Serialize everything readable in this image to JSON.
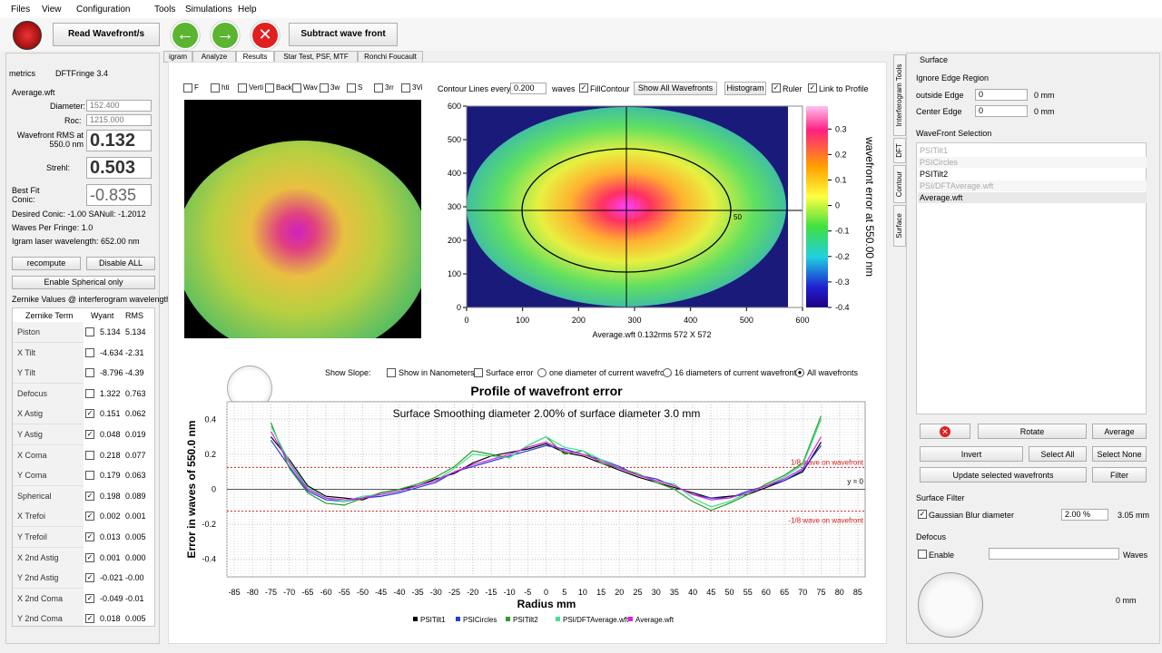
{
  "menu": [
    "Files",
    "View",
    "Configuration",
    "Tools",
    "Simulations",
    "Help"
  ],
  "toolbar": {
    "read": "Read Wavefront/s",
    "subtract": "Subtract wave front"
  },
  "tabs": [
    "igram",
    "Analyze",
    "Results",
    "Star Test, PSF, MTF",
    "Ronchi  Foucault"
  ],
  "left_panel": {
    "title": "metrics",
    "subtitle": "DFTFringe 3.4",
    "file": "Average.wft",
    "diameter_label": "Diameter:",
    "diameter": "152.400",
    "roc_label": "Roc:",
    "roc": "1215.000",
    "rms_label": "Wavefront RMS at 550.0 nm",
    "rms": "0.132",
    "strehl_label": "Strehl:",
    "strehl": "0.503",
    "conic_label": "Best Fit Conic:",
    "conic": "-0.835",
    "desired": "Desired Conic:  -1.00 SANull:  -1.2012",
    "waves": "Waves Per Fringe: 1.0",
    "laser": "Igram laser wavelength: 652.00 nm",
    "recompute": "recompute",
    "disable": "Disable ALL",
    "spherical": "Enable Spherical only",
    "zernike_caption": "Zernike Values @ interferogram wavelength",
    "table_header": [
      "Zernike Term",
      "Wyant",
      "RMS"
    ],
    "rows": [
      [
        "Piston",
        false,
        "5.134",
        "5.134"
      ],
      [
        "X Tilt",
        false,
        "-4.634",
        "-2.31"
      ],
      [
        "Y Tilt",
        false,
        "-8.796",
        "-4.39"
      ],
      [
        "Defocus",
        false,
        "1.322",
        "0.763"
      ],
      [
        "X Astig",
        true,
        "0.151",
        "0.062"
      ],
      [
        "Y Astig",
        true,
        "0.048",
        "0.019"
      ],
      [
        "X Coma",
        false,
        "0.218",
        "0.077"
      ],
      [
        "Y Coma",
        false,
        "0.179",
        "0.063"
      ],
      [
        "Spherical",
        true,
        "0.198",
        "0.089"
      ],
      [
        "X Trefoi",
        true,
        "0.002",
        "0.001"
      ],
      [
        "Y Trefoil",
        true,
        "0.013",
        "0.005"
      ],
      [
        "X 2nd Astig",
        true,
        "0.001",
        "0.000"
      ],
      [
        "Y 2nd Astig",
        true,
        "-0.021",
        "-0.00"
      ],
      [
        "X 2nd Coma",
        true,
        "-0.049",
        "-0.01"
      ],
      [
        "Y 2nd Coma",
        true,
        "0.018",
        "0.005"
      ]
    ]
  },
  "view3d": {
    "buttons": [
      "F",
      "hti",
      "Verti",
      "Back",
      "Wav",
      "3w",
      "S",
      "3rr",
      "3Vi"
    ]
  },
  "contour_controls": {
    "every": "Contour Lines every",
    "step": "0.200",
    "waves": "waves",
    "fill": "FillContour",
    "show_all": "Show All Wavefronts",
    "histogram": "Histogram",
    "ruler": "Ruler",
    "link": "Link to Profile"
  },
  "contour_plot": {
    "caption": "Average.wft  0.132rms 572 X 572",
    "colorbar_label": "wavefront error at 550.00 nm",
    "ruler_label": "50",
    "xlim": [
      0,
      600
    ],
    "xticks": [
      0,
      100,
      200,
      300,
      400,
      500,
      600
    ],
    "ylim": [
      0,
      600
    ],
    "yticks": [
      0,
      100,
      200,
      300,
      400,
      500,
      600
    ],
    "clim": [
      -0.4,
      0.39
    ],
    "cticks": [
      0.3,
      0.2,
      0.1,
      0,
      -0.1,
      -0.2,
      -0.3,
      -0.4
    ]
  },
  "profile_options": [
    "Show Slope:",
    "Show in Nanometers",
    "Surface error",
    "one diameter of current wavefront",
    "16 diameters of current wavefront",
    "All wavefronts"
  ],
  "chart_data": {
    "type": "line",
    "title": "Profile of wavefront error",
    "subtitle": "Surface Smoothing diameter   2.00% of surface diameter    3.0 mm",
    "x_label": "Radius mm",
    "y_label": "Error in waves of  550.0 nm",
    "zero_label": "y = 0",
    "reference_lines": [
      {
        "value": 0.125,
        "label": "1/8 wave on wavefront"
      },
      {
        "value": -0.125,
        "label": "-1/8 wave on wavefront"
      }
    ],
    "xlim": [
      -87,
      87
    ],
    "ylim": [
      -0.5,
      0.5
    ],
    "xticks": [
      -85,
      -80,
      -75,
      -70,
      -65,
      -60,
      -55,
      -50,
      -45,
      -40,
      -35,
      -30,
      -25,
      -20,
      -15,
      -10,
      -5,
      0,
      5,
      10,
      15,
      20,
      25,
      30,
      35,
      40,
      45,
      50,
      55,
      60,
      65,
      70,
      75,
      80,
      85
    ],
    "yticks": [
      0.4,
      0.2,
      0,
      -0.2,
      -0.4
    ],
    "grid": true,
    "x": [
      -75,
      -70,
      -65,
      -60,
      -55,
      -50,
      -45,
      -40,
      -35,
      -30,
      -25,
      -20,
      -15,
      -10,
      -5,
      0,
      5,
      10,
      15,
      20,
      25,
      30,
      35,
      40,
      45,
      50,
      55,
      60,
      65,
      70,
      75
    ],
    "series": [
      {
        "name": "PSITilt1",
        "color": "#000000",
        "values": [
          0.3,
          0.17,
          0.02,
          -0.04,
          -0.05,
          -0.06,
          -0.02,
          0.0,
          0.02,
          0.06,
          0.09,
          0.15,
          0.19,
          0.21,
          0.23,
          0.26,
          0.21,
          0.19,
          0.15,
          0.11,
          0.07,
          0.04,
          0.01,
          -0.02,
          -0.05,
          -0.04,
          -0.03,
          0.01,
          0.05,
          0.1,
          0.27
        ]
      },
      {
        "name": "PSICircles",
        "color": "#2040d8",
        "values": [
          0.28,
          0.13,
          -0.01,
          -0.06,
          -0.07,
          -0.05,
          -0.04,
          -0.02,
          0.01,
          0.04,
          0.1,
          0.13,
          0.16,
          0.19,
          0.22,
          0.25,
          0.23,
          0.2,
          0.17,
          0.13,
          0.08,
          0.06,
          0.02,
          -0.03,
          -0.05,
          -0.05,
          -0.01,
          0.02,
          0.05,
          0.11,
          0.25
        ]
      },
      {
        "name": "PSITilt2",
        "color": "#2a9d2a",
        "values": [
          0.38,
          0.12,
          -0.02,
          -0.08,
          -0.09,
          -0.05,
          -0.02,
          0.0,
          0.03,
          0.07,
          0.13,
          0.22,
          0.2,
          0.18,
          0.25,
          0.3,
          0.2,
          0.22,
          0.15,
          0.12,
          0.09,
          0.04,
          0.0,
          -0.07,
          -0.12,
          -0.08,
          -0.03,
          0.03,
          0.08,
          0.15,
          0.42
        ]
      },
      {
        "name": "PSI/DFTAverage.wft",
        "color": "#40e090",
        "values": [
          0.36,
          0.16,
          0.01,
          -0.05,
          -0.07,
          -0.04,
          -0.03,
          -0.01,
          0.02,
          0.05,
          0.12,
          0.2,
          0.19,
          0.18,
          0.25,
          0.3,
          0.24,
          0.22,
          0.17,
          0.12,
          0.08,
          0.05,
          0.03,
          -0.05,
          -0.1,
          -0.07,
          -0.02,
          0.02,
          0.07,
          0.14,
          0.4
        ]
      },
      {
        "name": "Average.wft",
        "color": "#e020e0",
        "values": [
          0.33,
          0.15,
          0.0,
          -0.05,
          -0.06,
          -0.05,
          -0.03,
          -0.01,
          0.02,
          0.05,
          0.1,
          0.14,
          0.17,
          0.2,
          0.24,
          0.27,
          0.22,
          0.2,
          0.16,
          0.12,
          0.08,
          0.05,
          0.02,
          -0.03,
          -0.06,
          -0.05,
          -0.02,
          0.02,
          0.06,
          0.12,
          0.3
        ]
      }
    ]
  },
  "right_panel": {
    "title": "Surface",
    "ignore": "Ignore Edge Region",
    "outside": "outside Edge",
    "outside_value": "0",
    "outside_unit": "0 mm",
    "center": "Center Edge",
    "center_value": "0",
    "center_unit": "0 mm",
    "selection": "WaveFront Selection",
    "wavefronts": [
      "PSITilt1",
      "PSICircles",
      "PSITilt2",
      "PSI/DFTAverage.wft",
      "Average.wft"
    ],
    "rotate": "Rotate",
    "average": "Average",
    "invert": "Invert",
    "select_all": "Select All",
    "select_none": "Select None",
    "update": "Update selected wavefronts",
    "filter": "Filter",
    "surface_filter": "Surface Filter",
    "gaussian": "Gaussian Blur diameter",
    "gaussian_value": "2.00 %",
    "gaussian_mm": "3.05 mm",
    "defocus": "Defocus",
    "enable": "Enable",
    "waves_unit": "Waves",
    "defocus_mm": "0 mm",
    "side_tabs": [
      "Interferogram Tools",
      "DFT",
      "Contour",
      "Surface"
    ]
  }
}
